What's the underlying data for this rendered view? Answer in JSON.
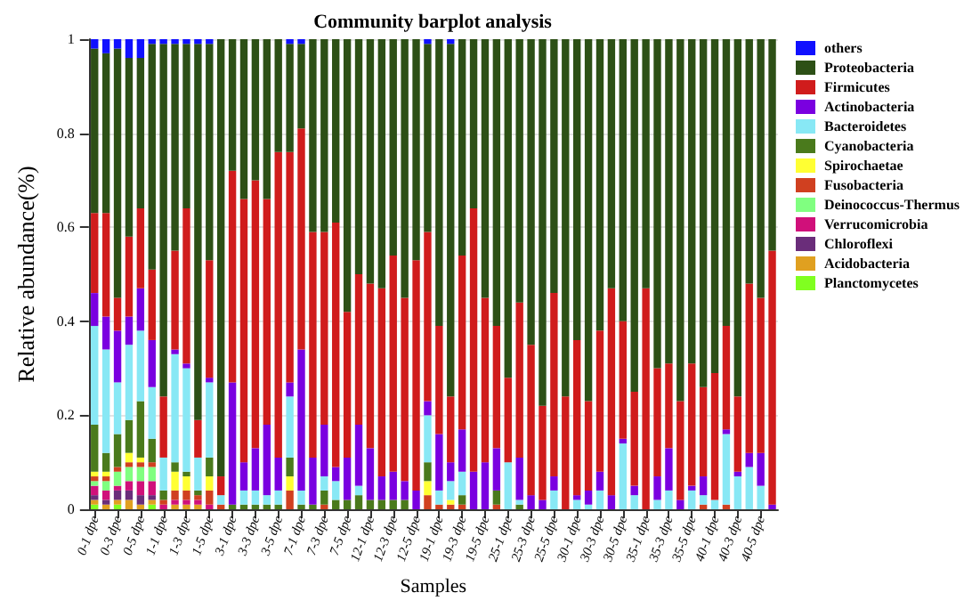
{
  "chart_data": {
    "type": "bar",
    "title": "Community barplot analysis",
    "xlabel": "Samples",
    "ylabel": "Relative abundance(%)",
    "stacked": true,
    "grid": "y",
    "legend": "right",
    "categories": [
      "0-1 dpe",
      null,
      "0-3 dpe",
      null,
      "0-5 dpe",
      null,
      "1-1 dpe",
      null,
      "1-3 dpe",
      null,
      "1-5 dpe",
      null,
      "3-1 dpe",
      null,
      "3-3 dpe",
      null,
      "3-5 dpe",
      null,
      "7-1 dpe",
      null,
      "7-3 dpe",
      null,
      "7-5 dpe",
      null,
      "12-1 dpe",
      null,
      "12-3 dpe",
      null,
      "12-5 dpe",
      null,
      "19-1 dpe",
      null,
      "19-3 dpe",
      null,
      "19-5 dpe",
      null,
      "25-1 dpe",
      null,
      "25-3 dpe",
      null,
      "25-5 dpe",
      null,
      "30-1 dpe",
      null,
      "30-3 dpe",
      null,
      "30-5 dpe",
      null,
      "35-1 dpe",
      null,
      "35-3 dpe",
      null,
      "35-5 dpe",
      null,
      "40-1 dpe",
      null,
      "40-3 dpe",
      null,
      "40-5 dpe",
      null
    ],
    "ylim": [
      0,
      1
    ],
    "yticks": [
      0,
      0.2,
      0.4,
      0.6,
      0.8,
      1
    ],
    "series": [
      {
        "name": "Planctomycetes",
        "color": "#80ff20",
        "values": [
          0.01,
          0,
          0.01,
          0,
          0,
          0.01,
          0,
          0,
          0,
          0,
          0,
          0,
          0,
          0,
          0,
          0,
          0,
          0,
          0,
          0,
          0,
          0,
          0,
          0,
          0,
          0,
          0,
          0,
          0,
          0,
          0,
          0,
          0,
          0,
          0,
          0,
          0,
          0,
          0,
          0,
          0,
          0,
          0,
          0,
          0,
          0,
          0,
          0,
          0,
          0,
          0,
          0,
          0,
          0,
          0,
          0,
          0,
          0,
          0,
          0
        ]
      },
      {
        "name": "Acidobacteria",
        "color": "#e0a020",
        "values": [
          0.01,
          0.01,
          0.01,
          0.02,
          0.01,
          0.01,
          0,
          0.01,
          0.01,
          0.01,
          0,
          0,
          0,
          0,
          0,
          0,
          0,
          0,
          0,
          0,
          0,
          0,
          0,
          0,
          0,
          0,
          0,
          0,
          0,
          0,
          0,
          0,
          0,
          0,
          0,
          0,
          0,
          0,
          0,
          0,
          0,
          0,
          0,
          0,
          0,
          0,
          0,
          0,
          0,
          0,
          0,
          0,
          0,
          0,
          0,
          0,
          0,
          0,
          0,
          0
        ]
      },
      {
        "name": "Chloroflexi",
        "color": "#6a2d7a",
        "values": [
          0.01,
          0.01,
          0.02,
          0.02,
          0.02,
          0.01,
          0,
          0,
          0,
          0,
          0,
          0,
          0,
          0,
          0,
          0,
          0,
          0,
          0,
          0,
          0,
          0,
          0,
          0,
          0,
          0,
          0,
          0,
          0,
          0,
          0,
          0,
          0,
          0,
          0,
          0,
          0,
          0,
          0,
          0,
          0,
          0,
          0,
          0,
          0,
          0,
          0,
          0,
          0,
          0,
          0,
          0,
          0,
          0,
          0,
          0,
          0,
          0,
          0,
          0
        ]
      },
      {
        "name": "Verrucomicrobia",
        "color": "#d0107a",
        "values": [
          0.02,
          0.02,
          0.01,
          0.02,
          0.03,
          0.03,
          0.01,
          0.01,
          0.01,
          0.01,
          0.01,
          0,
          0,
          0,
          0,
          0,
          0,
          0,
          0,
          0,
          0,
          0,
          0,
          0,
          0,
          0,
          0,
          0,
          0,
          0,
          0,
          0,
          0,
          0,
          0,
          0,
          0,
          0,
          0,
          0,
          0,
          0,
          0,
          0,
          0,
          0,
          0,
          0,
          0,
          0,
          0,
          0,
          0,
          0,
          0,
          0,
          0,
          0,
          0,
          0
        ]
      },
      {
        "name": "Deinococcus-Thermus",
        "color": "#80ff80",
        "values": [
          0.01,
          0.02,
          0.03,
          0.03,
          0.03,
          0.03,
          0,
          0,
          0,
          0,
          0,
          0,
          0,
          0,
          0,
          0,
          0,
          0,
          0,
          0,
          0,
          0,
          0,
          0,
          0,
          0,
          0,
          0,
          0,
          0,
          0,
          0,
          0,
          0,
          0,
          0,
          0,
          0,
          0,
          0,
          0,
          0,
          0,
          0,
          0,
          0,
          0,
          0,
          0,
          0,
          0,
          0,
          0,
          0,
          0,
          0,
          0,
          0,
          0,
          0
        ]
      },
      {
        "name": "Fusobacteria",
        "color": "#d04020",
        "values": [
          0.01,
          0.01,
          0.01,
          0.01,
          0.01,
          0.01,
          0.01,
          0.02,
          0.02,
          0.01,
          0.03,
          0.01,
          0,
          0,
          0,
          0,
          0,
          0.04,
          0,
          0,
          0.01,
          0,
          0,
          0,
          0,
          0,
          0,
          0,
          0,
          0.03,
          0.01,
          0.01,
          0.01,
          0,
          0,
          0.01,
          0,
          0,
          0,
          0,
          0,
          0,
          0,
          0,
          0,
          0,
          0,
          0,
          0,
          0,
          0,
          0,
          0,
          0.01,
          0,
          0.01,
          0,
          0,
          0,
          0
        ]
      },
      {
        "name": "Spirochaetae",
        "color": "#ffff33",
        "values": [
          0.01,
          0.01,
          0,
          0.02,
          0.01,
          0,
          0,
          0.04,
          0.03,
          0,
          0.03,
          0,
          0,
          0,
          0,
          0,
          0,
          0.03,
          0,
          0,
          0,
          0,
          0,
          0,
          0,
          0,
          0,
          0,
          0,
          0.03,
          0,
          0.01,
          0,
          0,
          0,
          0,
          0,
          0,
          0,
          0,
          0,
          0,
          0,
          0,
          0,
          0,
          0,
          0,
          0,
          0,
          0,
          0,
          0,
          0,
          0,
          0,
          0,
          0,
          0,
          0
        ]
      },
      {
        "name": "Cyanobacteria",
        "color": "#4a7a1c",
        "values": [
          0.1,
          0.04,
          0.07,
          0.07,
          0.12,
          0.05,
          0.02,
          0.02,
          0.01,
          0.01,
          0.04,
          0,
          0.01,
          0.01,
          0.01,
          0.01,
          0.01,
          0.04,
          0.01,
          0.01,
          0.03,
          0.02,
          0.02,
          0.03,
          0.02,
          0.02,
          0.02,
          0.02,
          0,
          0.04,
          0,
          0,
          0.02,
          0,
          0,
          0.03,
          0,
          0.01,
          0,
          0,
          0,
          0,
          0,
          0,
          0,
          0,
          0,
          0,
          0,
          0,
          0,
          0,
          0,
          0,
          0,
          0,
          0,
          0,
          0,
          0
        ]
      },
      {
        "name": "Bacteroidetes",
        "color": "#88e8f5",
        "values": [
          0.21,
          0.22,
          0.11,
          0.16,
          0.15,
          0.11,
          0.07,
          0.23,
          0.22,
          0.07,
          0.16,
          0.02,
          0,
          0.03,
          0.03,
          0.02,
          0.03,
          0.13,
          0.03,
          0,
          0.03,
          0.04,
          0,
          0.02,
          0,
          0,
          0,
          0,
          0,
          0.1,
          0.03,
          0.04,
          0.05,
          0,
          0,
          0,
          0.1,
          0.01,
          0,
          0,
          0.04,
          0,
          0.02,
          0.01,
          0.04,
          0,
          0.14,
          0.03,
          0,
          0.02,
          0.04,
          0,
          0.04,
          0.02,
          0.02,
          0.15,
          0.07,
          0.09,
          0.05,
          0
        ]
      },
      {
        "name": "Actinobacteria",
        "color": "#7a00e0",
        "values": [
          0.07,
          0.07,
          0.11,
          0.06,
          0.09,
          0.1,
          0,
          0.01,
          0.01,
          0,
          0.01,
          0,
          0.26,
          0.06,
          0.09,
          0.15,
          0.07,
          0.03,
          0.3,
          0.1,
          0.11,
          0.03,
          0.09,
          0.13,
          0.11,
          0.05,
          0.06,
          0.04,
          0.04,
          0.03,
          0.12,
          0.04,
          0.09,
          0.08,
          0.1,
          0.09,
          0,
          0.09,
          0.03,
          0.02,
          0.03,
          0,
          0.01,
          0.03,
          0.04,
          0.03,
          0.01,
          0.02,
          0,
          0.05,
          0.09,
          0.02,
          0.01,
          0.04,
          0,
          0.01,
          0.01,
          0.03,
          0.07,
          0.01
        ]
      },
      {
        "name": "Firmicutes",
        "color": "#d01c1c",
        "values": [
          0.17,
          0.22,
          0.07,
          0.17,
          0.17,
          0.15,
          0.13,
          0.21,
          0.33,
          0.08,
          0.25,
          0.04,
          0.45,
          0.56,
          0.57,
          0.48,
          0.65,
          0.49,
          0.47,
          0.48,
          0.41,
          0.52,
          0.31,
          0.32,
          0.35,
          0.4,
          0.46,
          0.39,
          0.49,
          0.36,
          0.23,
          0.14,
          0.37,
          0.56,
          0.35,
          0.26,
          0.18,
          0.33,
          0.32,
          0.2,
          0.39,
          0.24,
          0.33,
          0.19,
          0.3,
          0.44,
          0.25,
          0.2,
          0.47,
          0.23,
          0.18,
          0.21,
          0.26,
          0.19,
          0.27,
          0.22,
          0.16,
          0.36,
          0.33,
          0.54
        ]
      },
      {
        "name": "Proteobacteria",
        "color": "#2d5016",
        "values": [
          0.35,
          0.34,
          0.53,
          0.38,
          0.32,
          0.48,
          0.75,
          0.44,
          0.35,
          0.8,
          0.46,
          0.93,
          0.28,
          0.34,
          0.3,
          0.34,
          0.24,
          0.23,
          0.18,
          0.41,
          0.41,
          0.39,
          0.58,
          0.5,
          0.52,
          0.53,
          0.46,
          0.55,
          0.47,
          0.4,
          0.61,
          0.75,
          0.46,
          0.36,
          0.55,
          0.61,
          0.72,
          0.56,
          0.65,
          0.78,
          0.54,
          0.76,
          0.64,
          0.77,
          0.62,
          0.53,
          0.6,
          0.75,
          0.53,
          0.7,
          0.69,
          0.77,
          0.69,
          0.74,
          0.71,
          0.61,
          0.76,
          0.52,
          0.55,
          0.45
        ]
      },
      {
        "name": "others",
        "color": "#1010ff",
        "values": [
          0.02,
          0.03,
          0.02,
          0.04,
          0.04,
          0.01,
          0.01,
          0.01,
          0.01,
          0.01,
          0.01,
          0,
          0,
          0,
          0,
          0,
          0,
          0.01,
          0.01,
          0,
          0,
          0,
          0,
          0,
          0,
          0,
          0,
          0,
          0,
          0.01,
          0,
          0.01,
          0,
          0,
          0,
          0,
          0,
          0,
          0,
          0,
          0,
          0,
          0,
          0,
          0,
          0,
          0,
          0,
          0,
          0,
          0,
          0,
          0,
          0,
          0,
          0,
          0,
          0,
          0,
          0
        ]
      }
    ]
  }
}
